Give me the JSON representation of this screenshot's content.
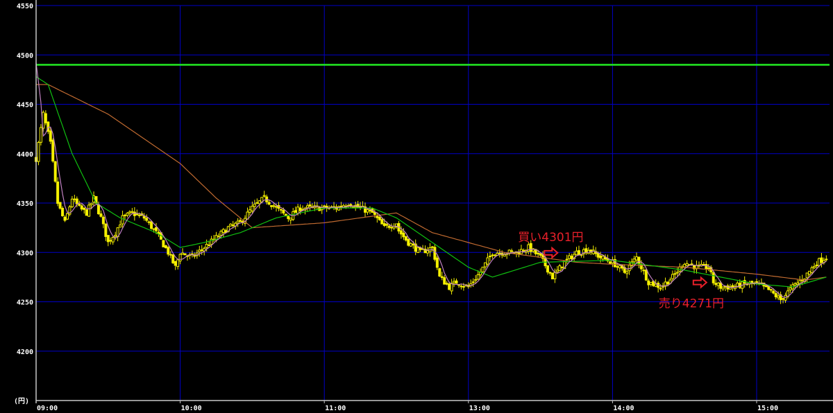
{
  "chart_data": {
    "type": "candlestick",
    "title": "",
    "xlabel": "",
    "ylabel": "(円)",
    "ylim": [
      4150,
      4550
    ],
    "yticks": [
      4550,
      4500,
      4450,
      4400,
      4350,
      4300,
      4250,
      4200
    ],
    "xticks": [
      "09:00",
      "10:00",
      "11:00",
      "13:00",
      "14:00",
      "15:00"
    ],
    "session_breaks": {
      "morning_close": "11:30",
      "afternoon_open": "12:30"
    },
    "grid": true,
    "colors": {
      "background": "#000000",
      "grid": "#0000c8",
      "candles": "#f5f000",
      "reference_line": "#22ee22",
      "ma_short": "#c080c0",
      "ma_mid": "#10c010",
      "ma_long": "#c06a30",
      "annotation": "#e8202a",
      "axis": "#c8c8c8"
    },
    "reference_line": 4490,
    "close_path": [
      [
        "09:00",
        4395
      ],
      [
        "09:03",
        4440
      ],
      [
        "09:06",
        4410
      ],
      [
        "09:09",
        4350
      ],
      [
        "09:12",
        4330
      ],
      [
        "09:15",
        4355
      ],
      [
        "09:18",
        4345
      ],
      [
        "09:21",
        4340
      ],
      [
        "09:24",
        4355
      ],
      [
        "09:27",
        4335
      ],
      [
        "09:30",
        4310
      ],
      [
        "09:33",
        4320
      ],
      [
        "09:36",
        4335
      ],
      [
        "09:40",
        4340
      ],
      [
        "09:45",
        4335
      ],
      [
        "09:50",
        4320
      ],
      [
        "09:55",
        4300
      ],
      [
        "09:58",
        4285
      ],
      [
        "10:00",
        4300
      ],
      [
        "10:05",
        4295
      ],
      [
        "10:10",
        4305
      ],
      [
        "10:15",
        4315
      ],
      [
        "10:20",
        4325
      ],
      [
        "10:25",
        4330
      ],
      [
        "10:30",
        4345
      ],
      [
        "10:35",
        4355
      ],
      [
        "10:40",
        4345
      ],
      [
        "10:45",
        4335
      ],
      [
        "10:50",
        4345
      ],
      [
        "10:55",
        4345
      ],
      [
        "11:00",
        4345
      ],
      [
        "11:05",
        4345
      ],
      [
        "11:10",
        4350
      ],
      [
        "11:15",
        4345
      ],
      [
        "11:20",
        4340
      ],
      [
        "11:25",
        4325
      ],
      [
        "11:30",
        4330
      ],
      [
        "12:30",
        4325
      ],
      [
        "12:35",
        4310
      ],
      [
        "12:40",
        4300
      ],
      [
        "12:45",
        4305
      ],
      [
        "12:48",
        4275
      ],
      [
        "12:52",
        4265
      ],
      [
        "12:55",
        4270
      ],
      [
        "13:00",
        4265
      ],
      [
        "13:05",
        4280
      ],
      [
        "13:10",
        4300
      ],
      [
        "13:15",
        4300
      ],
      [
        "13:20",
        4300
      ],
      [
        "13:25",
        4305
      ],
      [
        "13:30",
        4295
      ],
      [
        "13:35",
        4275
      ],
      [
        "13:40",
        4290
      ],
      [
        "13:45",
        4300
      ],
      [
        "13:50",
        4303
      ],
      [
        "13:55",
        4295
      ],
      [
        "14:00",
        4290
      ],
      [
        "14:05",
        4280
      ],
      [
        "14:10",
        4295
      ],
      [
        "14:15",
        4270
      ],
      [
        "14:20",
        4265
      ],
      [
        "14:25",
        4275
      ],
      [
        "14:30",
        4290
      ],
      [
        "14:35",
        4285
      ],
      [
        "14:40",
        4285
      ],
      [
        "14:42",
        4270
      ],
      [
        "14:45",
        4265
      ],
      [
        "14:50",
        4265
      ],
      [
        "14:55",
        4268
      ],
      [
        "15:00",
        4268
      ],
      [
        "15:05",
        4262
      ],
      [
        "15:10",
        4252
      ],
      [
        "15:15",
        4265
      ],
      [
        "15:20",
        4275
      ],
      [
        "15:25",
        4290
      ],
      [
        "15:29",
        4295
      ]
    ],
    "ma_mid": [
      [
        "09:00",
        4478
      ],
      [
        "09:05",
        4470
      ],
      [
        "09:15",
        4400
      ],
      [
        "09:25",
        4350
      ],
      [
        "09:35",
        4335
      ],
      [
        "09:50",
        4320
      ],
      [
        "10:00",
        4305
      ],
      [
        "10:10",
        4310
      ],
      [
        "10:25",
        4320
      ],
      [
        "10:40",
        4335
      ],
      [
        "11:00",
        4345
      ],
      [
        "11:20",
        4345
      ],
      [
        "11:30",
        4335
      ],
      [
        "12:45",
        4310
      ],
      [
        "13:00",
        4285
      ],
      [
        "13:10",
        4275
      ],
      [
        "13:30",
        4290
      ],
      [
        "14:00",
        4292
      ],
      [
        "14:30",
        4282
      ],
      [
        "15:00",
        4268
      ],
      [
        "15:15",
        4265
      ],
      [
        "15:29",
        4275
      ]
    ],
    "ma_long": [
      [
        "09:00",
        4470
      ],
      [
        "09:05",
        4470
      ],
      [
        "09:30",
        4440
      ],
      [
        "10:00",
        4390
      ],
      [
        "10:15",
        4355
      ],
      [
        "10:30",
        4325
      ],
      [
        "11:00",
        4330
      ],
      [
        "11:30",
        4340
      ],
      [
        "12:45",
        4320
      ],
      [
        "13:15",
        4300
      ],
      [
        "13:45",
        4290
      ],
      [
        "14:00",
        4288
      ],
      [
        "14:30",
        4285
      ],
      [
        "15:00",
        4278
      ],
      [
        "15:20",
        4272
      ],
      [
        "15:29",
        4275
      ]
    ],
    "annotations": [
      {
        "text": "買い4301円",
        "time": "13:38",
        "price": 4301,
        "marker": "arrow-right"
      },
      {
        "text": "売り4271円",
        "time": "14:40",
        "price": 4271,
        "marker": "arrow-right"
      }
    ]
  }
}
